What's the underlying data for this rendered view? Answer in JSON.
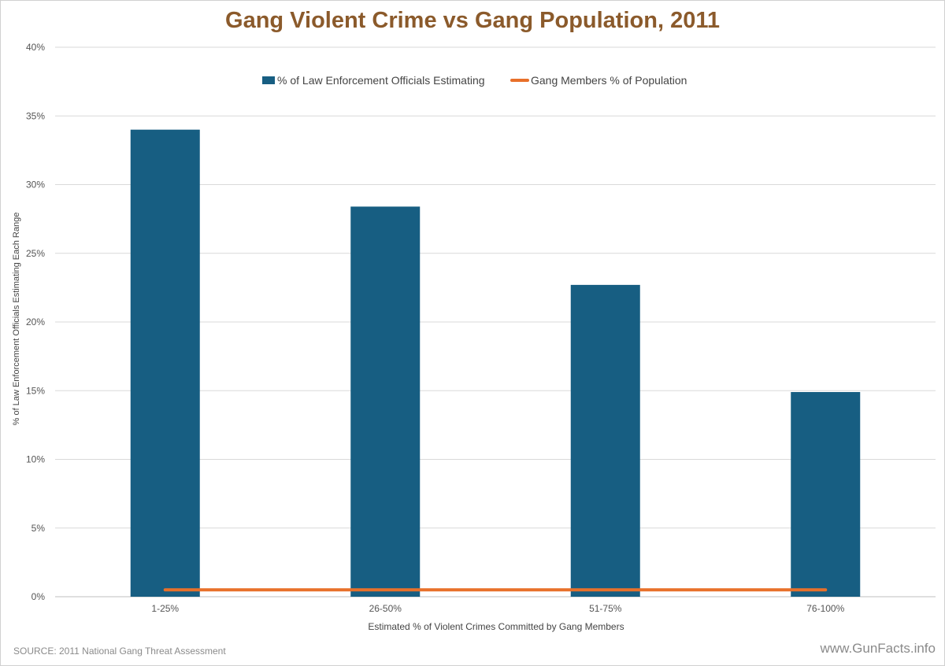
{
  "chart_data": {
    "type": "bar",
    "title": "Gang Violent Crime vs Gang Population, 2011",
    "xlabel": "Estimated % of Violent Crimes Committed by Gang Members",
    "ylabel": "% of Law Enforcement Officials Estimating Each Range",
    "categories": [
      "1-25%",
      "26-50%",
      "51-75%",
      "76-100%"
    ],
    "ylim": [
      0,
      40
    ],
    "yticks": [
      0,
      5,
      10,
      15,
      20,
      25,
      30,
      35,
      40
    ],
    "ytick_labels": [
      "0%",
      "5%",
      "10%",
      "15%",
      "20%",
      "25%",
      "30%",
      "35%",
      "40%"
    ],
    "grid": true,
    "legend_position": "top",
    "series": [
      {
        "name": "% of Law Enforcement Officials Estimating",
        "type": "bar",
        "color": "#175e82",
        "values": [
          34.0,
          28.4,
          22.7,
          14.9
        ]
      },
      {
        "name": "Gang Members % of Population",
        "type": "line",
        "color": "#e8702a",
        "values": [
          0.5,
          0.5,
          0.5,
          0.5
        ]
      }
    ]
  },
  "footer": {
    "source": "SOURCE: 2011 National Gang Threat Assessment",
    "watermark": "www.GunFacts.info"
  }
}
